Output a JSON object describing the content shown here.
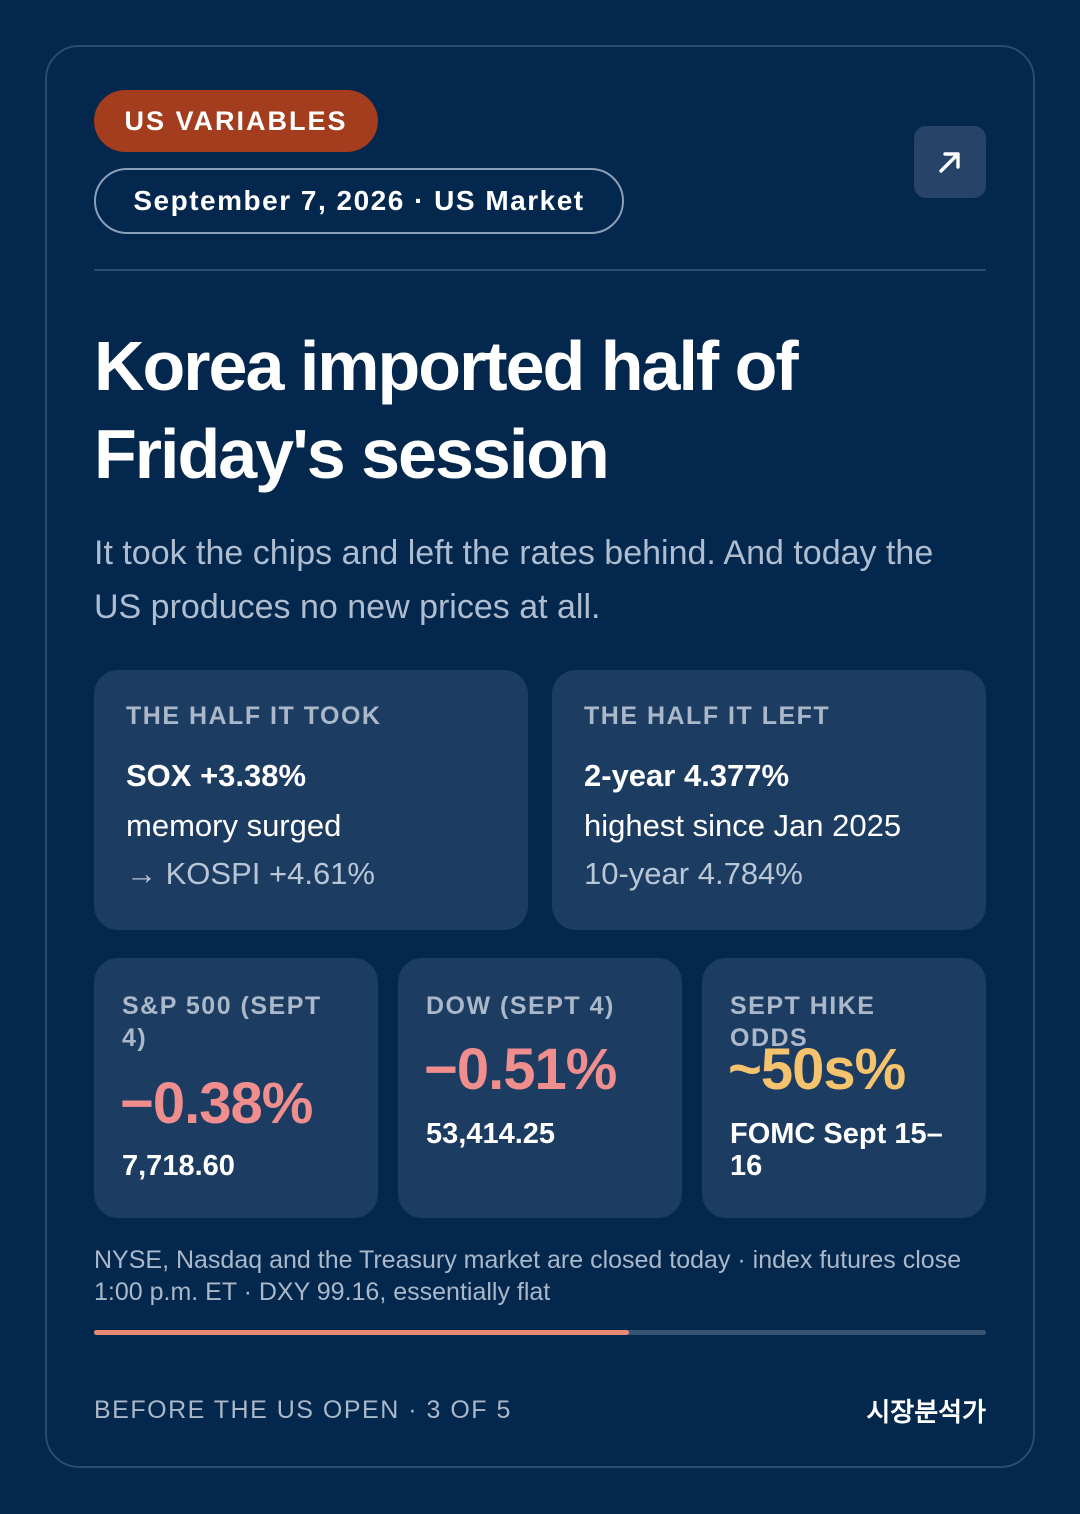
{
  "header": {
    "tag": "US VARIABLES",
    "dateline": "September 7, 2026 · US Market",
    "open_icon": "arrow-up-right-icon"
  },
  "headline": "Korea imported half of Friday's session",
  "subhead": "It took the chips and left the rates behind. And today the US produces no new prices at all.",
  "panels": [
    {
      "title": "THE HALF IT TOOK",
      "strong": "SOX +3.38%",
      "line1": "memory surged",
      "line2": "→ KOSPI +4.61%"
    },
    {
      "title": "THE HALF IT LEFT",
      "strong": "2-year 4.377%",
      "line1": "highest since Jan 2025",
      "line2": "10-year 4.784%"
    }
  ],
  "stats": [
    {
      "label": "S&P 500 (SEPT 4)",
      "value": "−0.38%",
      "detail": "7,718.60",
      "color": "#f08e8e"
    },
    {
      "label": "DOW (SEPT 4)",
      "value": "−0.51%",
      "detail": "53,414.25",
      "color": "#f08e8e"
    },
    {
      "label": "SEPT HIKE ODDS",
      "value": "~50s%",
      "detail": "FOMC Sept 15–16",
      "color": "#f5c36e"
    }
  ],
  "footnote": "NYSE, Nasdaq and the Treasury market are closed today · index futures close 1:00 p.m. ET · DXY 99.16, essentially flat",
  "progress": {
    "fraction": 0.6,
    "color": "#e88a76"
  },
  "footer": {
    "left": "BEFORE THE US OPEN · 3 OF 5",
    "right": "시장분석가"
  },
  "colors": {
    "background": "#03274d",
    "panel": "#1d3c62",
    "tag": "#a43c1e"
  }
}
